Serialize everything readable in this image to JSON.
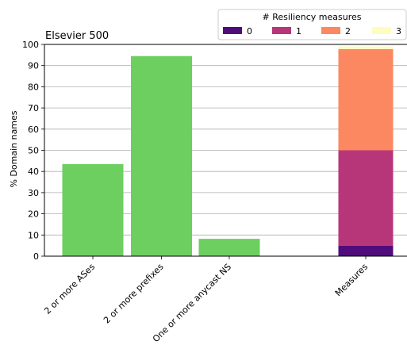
{
  "chart_data": {
    "type": "bar",
    "title": "Elsevier 500",
    "ylabel": "% Domain names",
    "xlabel": "",
    "ylim": [
      0,
      100
    ],
    "yticks": [
      0,
      10,
      20,
      30,
      40,
      50,
      60,
      70,
      80,
      90,
      100
    ],
    "grid": "horizontal",
    "categories": [
      "2 or more ASes",
      "2 or more prefixes",
      "One or more anycast NS"
    ],
    "values": [
      43.5,
      94.5,
      8.2
    ],
    "bar_color": "#6ccf5f",
    "stacked": {
      "category": "Measures",
      "series": [
        {
          "name": "0",
          "value": 5.0,
          "color": "#4f0d7b"
        },
        {
          "name": "1",
          "value": 45.0,
          "color": "#b7367a"
        },
        {
          "name": "2",
          "value": 47.8,
          "color": "#fb8861"
        },
        {
          "name": "3",
          "value": 1.2,
          "color": "#fcfdbf"
        }
      ]
    },
    "legend": {
      "title": "# Resiliency measures",
      "placement": "top-right",
      "entries": [
        "0",
        "1",
        "2",
        "3"
      ]
    }
  }
}
